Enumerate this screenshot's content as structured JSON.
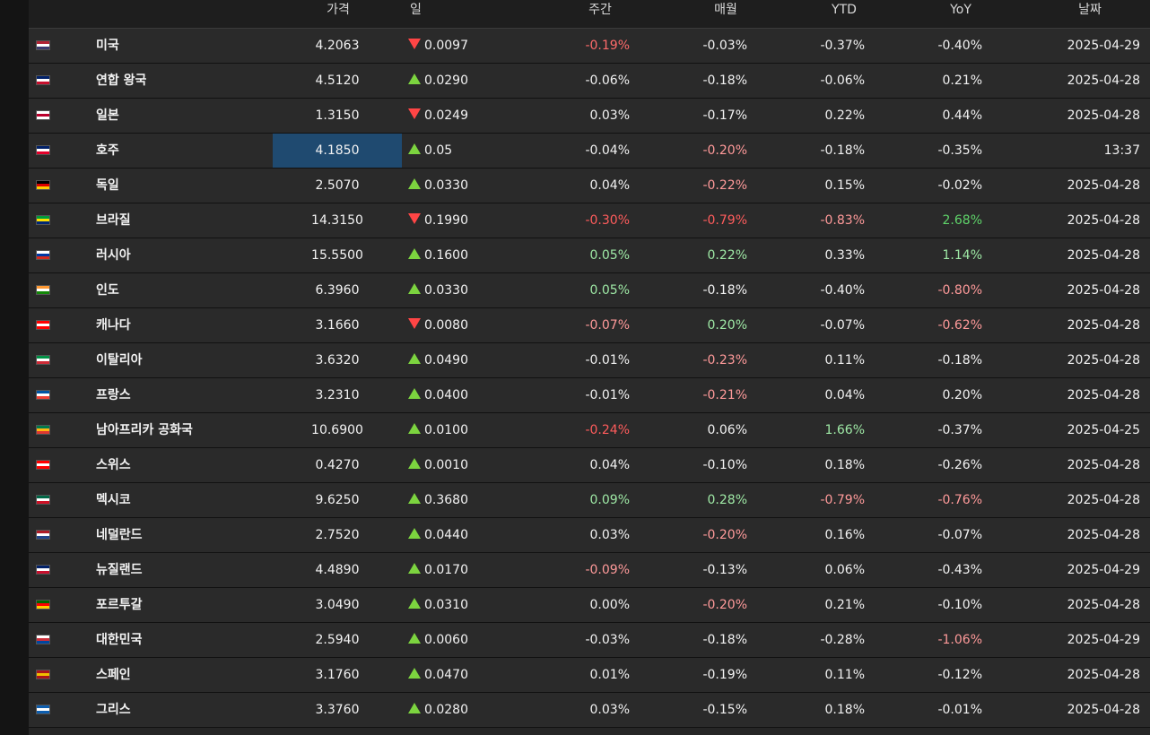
{
  "columns": {
    "price": "가격",
    "day": "일",
    "week": "주간",
    "month": "매월",
    "ytd": "YTD",
    "yoy": "YoY",
    "date": "날짜"
  },
  "rows": [
    {
      "name": "미국",
      "flag_colors": [
        "#b22234",
        "#ffffff",
        "#3c3b6e"
      ],
      "price": "4.2063",
      "dir": "down",
      "day": "0.0097",
      "week": "-0.19%",
      "week_color": "#ff6b6b",
      "month": "-0.03%",
      "month_color": "#f2f2f2",
      "ytd": "-0.37%",
      "ytd_color": "#f2f2f2",
      "yoy": "-0.40%",
      "yoy_color": "#f2f2f2",
      "date": "2025-04-29"
    },
    {
      "name": "연합 왕국",
      "flag_colors": [
        "#012169",
        "#ffffff",
        "#c8102e"
      ],
      "price": "4.5120",
      "dir": "up",
      "day": "0.0290",
      "week": "-0.06%",
      "week_color": "#f2f2f2",
      "month": "-0.18%",
      "month_color": "#f2f2f2",
      "ytd": "-0.06%",
      "ytd_color": "#f2f2f2",
      "yoy": "0.21%",
      "yoy_color": "#f2f2f2",
      "date": "2025-04-28"
    },
    {
      "name": "일본",
      "flag_colors": [
        "#ffffff",
        "#bc002d",
        "#ffffff"
      ],
      "price": "1.3150",
      "dir": "down",
      "day": "0.0249",
      "week": "0.03%",
      "week_color": "#f2f2f2",
      "month": "-0.17%",
      "month_color": "#f2f2f2",
      "ytd": "0.22%",
      "ytd_color": "#f2f2f2",
      "yoy": "0.44%",
      "yoy_color": "#f2f2f2",
      "date": "2025-04-28"
    },
    {
      "name": "호주",
      "flag_colors": [
        "#012169",
        "#ffffff",
        "#e4002b"
      ],
      "price": "4.1850",
      "dir": "up",
      "day": "0.05",
      "week": "-0.04%",
      "week_color": "#f2f2f2",
      "month": "-0.20%",
      "month_color": "#ff9a9a",
      "ytd": "-0.18%",
      "ytd_color": "#f2f2f2",
      "yoy": "-0.35%",
      "yoy_color": "#f2f2f2",
      "date": "13:37",
      "highlight": true
    },
    {
      "name": "독일",
      "flag_colors": [
        "#000000",
        "#dd0000",
        "#ffce00"
      ],
      "price": "2.5070",
      "dir": "up",
      "day": "0.0330",
      "week": "0.04%",
      "week_color": "#f2f2f2",
      "month": "-0.22%",
      "month_color": "#ff9a9a",
      "ytd": "0.15%",
      "ytd_color": "#f2f2f2",
      "yoy": "-0.02%",
      "yoy_color": "#f2f2f2",
      "date": "2025-04-28"
    },
    {
      "name": "브라질",
      "flag_colors": [
        "#009c3b",
        "#ffdf00",
        "#002776"
      ],
      "price": "14.3150",
      "dir": "down",
      "day": "0.1990",
      "week": "-0.30%",
      "week_color": "#ff5c5c",
      "month": "-0.79%",
      "month_color": "#ff5c5c",
      "ytd": "-0.83%",
      "ytd_color": "#ff9a9a",
      "yoy": "2.68%",
      "yoy_color": "#5fd46a",
      "date": "2025-04-28"
    },
    {
      "name": "러시아",
      "flag_colors": [
        "#ffffff",
        "#0039a6",
        "#d52b1e"
      ],
      "price": "15.5500",
      "dir": "up",
      "day": "0.1600",
      "week": "0.05%",
      "week_color": "#9ee8a5",
      "month": "0.22%",
      "month_color": "#9ee8a5",
      "ytd": "0.33%",
      "ytd_color": "#f2f2f2",
      "yoy": "1.14%",
      "yoy_color": "#9ee8a5",
      "date": "2025-04-28"
    },
    {
      "name": "인도",
      "flag_colors": [
        "#ff9933",
        "#ffffff",
        "#138808"
      ],
      "price": "6.3960",
      "dir": "up",
      "day": "0.0330",
      "week": "0.05%",
      "week_color": "#9ee8a5",
      "month": "-0.18%",
      "month_color": "#f2f2f2",
      "ytd": "-0.40%",
      "ytd_color": "#f2f2f2",
      "yoy": "-0.80%",
      "yoy_color": "#ff9a9a",
      "date": "2025-04-28"
    },
    {
      "name": "캐나다",
      "flag_colors": [
        "#ff0000",
        "#ffffff",
        "#ff0000"
      ],
      "price": "3.1660",
      "dir": "down",
      "day": "0.0080",
      "week": "-0.07%",
      "week_color": "#ff9a9a",
      "month": "0.20%",
      "month_color": "#9ee8a5",
      "ytd": "-0.07%",
      "ytd_color": "#f2f2f2",
      "yoy": "-0.62%",
      "yoy_color": "#ff9a9a",
      "date": "2025-04-28"
    },
    {
      "name": "이탈리아",
      "flag_colors": [
        "#009246",
        "#ffffff",
        "#ce2b37"
      ],
      "price": "3.6320",
      "dir": "up",
      "day": "0.0490",
      "week": "-0.01%",
      "week_color": "#f2f2f2",
      "month": "-0.23%",
      "month_color": "#ff9a9a",
      "ytd": "0.11%",
      "ytd_color": "#f2f2f2",
      "yoy": "-0.18%",
      "yoy_color": "#f2f2f2",
      "date": "2025-04-28"
    },
    {
      "name": "프랑스",
      "flag_colors": [
        "#0055a4",
        "#ffffff",
        "#ef4135"
      ],
      "price": "3.2310",
      "dir": "up",
      "day": "0.0400",
      "week": "-0.01%",
      "week_color": "#f2f2f2",
      "month": "-0.21%",
      "month_color": "#ff9a9a",
      "ytd": "0.04%",
      "ytd_color": "#f2f2f2",
      "yoy": "0.20%",
      "yoy_color": "#f2f2f2",
      "date": "2025-04-28"
    },
    {
      "name": "남아프리카 공화국",
      "flag_colors": [
        "#007a4d",
        "#ffb612",
        "#de3831"
      ],
      "price": "10.6900",
      "dir": "up",
      "day": "0.0100",
      "week": "-0.24%",
      "week_color": "#ff5c5c",
      "month": "0.06%",
      "month_color": "#f2f2f2",
      "ytd": "1.66%",
      "ytd_color": "#9ee8a5",
      "yoy": "-0.37%",
      "yoy_color": "#f2f2f2",
      "date": "2025-04-25"
    },
    {
      "name": "스위스",
      "flag_colors": [
        "#ff0000",
        "#ffffff",
        "#ff0000"
      ],
      "price": "0.4270",
      "dir": "up",
      "day": "0.0010",
      "week": "0.04%",
      "week_color": "#f2f2f2",
      "month": "-0.10%",
      "month_color": "#f2f2f2",
      "ytd": "0.18%",
      "ytd_color": "#f2f2f2",
      "yoy": "-0.26%",
      "yoy_color": "#f2f2f2",
      "date": "2025-04-28"
    },
    {
      "name": "멕시코",
      "flag_colors": [
        "#006847",
        "#ffffff",
        "#ce1126"
      ],
      "price": "9.6250",
      "dir": "up",
      "day": "0.3680",
      "week": "0.09%",
      "week_color": "#9ee8a5",
      "month": "0.28%",
      "month_color": "#9ee8a5",
      "ytd": "-0.79%",
      "ytd_color": "#ff9a9a",
      "yoy": "-0.76%",
      "yoy_color": "#ff9a9a",
      "date": "2025-04-28"
    },
    {
      "name": "네덜란드",
      "flag_colors": [
        "#ae1c28",
        "#ffffff",
        "#21468b"
      ],
      "price": "2.7520",
      "dir": "up",
      "day": "0.0440",
      "week": "0.03%",
      "week_color": "#f2f2f2",
      "month": "-0.20%",
      "month_color": "#ff9a9a",
      "ytd": "0.16%",
      "ytd_color": "#f2f2f2",
      "yoy": "-0.07%",
      "yoy_color": "#f2f2f2",
      "date": "2025-04-28"
    },
    {
      "name": "뉴질랜드",
      "flag_colors": [
        "#012169",
        "#ffffff",
        "#c8102e"
      ],
      "price": "4.4890",
      "dir": "up",
      "day": "0.0170",
      "week": "-0.09%",
      "week_color": "#ff9a9a",
      "month": "-0.13%",
      "month_color": "#f2f2f2",
      "ytd": "0.06%",
      "ytd_color": "#f2f2f2",
      "yoy": "-0.43%",
      "yoy_color": "#f2f2f2",
      "date": "2025-04-29"
    },
    {
      "name": "포르투갈",
      "flag_colors": [
        "#006600",
        "#ff0000",
        "#ffcc00"
      ],
      "price": "3.0490",
      "dir": "up",
      "day": "0.0310",
      "week": "0.00%",
      "week_color": "#f2f2f2",
      "month": "-0.20%",
      "month_color": "#ff9a9a",
      "ytd": "0.21%",
      "ytd_color": "#f2f2f2",
      "yoy": "-0.10%",
      "yoy_color": "#f2f2f2",
      "date": "2025-04-28"
    },
    {
      "name": "대한민국",
      "flag_colors": [
        "#ffffff",
        "#cd2e3a",
        "#0047a0"
      ],
      "price": "2.5940",
      "dir": "up",
      "day": "0.0060",
      "week": "-0.03%",
      "week_color": "#f2f2f2",
      "month": "-0.18%",
      "month_color": "#f2f2f2",
      "ytd": "-0.28%",
      "ytd_color": "#f2f2f2",
      "yoy": "-1.06%",
      "yoy_color": "#ff9a9a",
      "date": "2025-04-29"
    },
    {
      "name": "스페인",
      "flag_colors": [
        "#aa151b",
        "#f1bf00",
        "#aa151b"
      ],
      "price": "3.1760",
      "dir": "up",
      "day": "0.0470",
      "week": "0.01%",
      "week_color": "#f2f2f2",
      "month": "-0.19%",
      "month_color": "#f2f2f2",
      "ytd": "0.11%",
      "ytd_color": "#f2f2f2",
      "yoy": "-0.12%",
      "yoy_color": "#f2f2f2",
      "date": "2025-04-28"
    },
    {
      "name": "그리스",
      "flag_colors": [
        "#0d5eaf",
        "#ffffff",
        "#0d5eaf"
      ],
      "price": "3.3760",
      "dir": "up",
      "day": "0.0280",
      "week": "0.03%",
      "week_color": "#f2f2f2",
      "month": "-0.15%",
      "month_color": "#f2f2f2",
      "ytd": "0.18%",
      "ytd_color": "#f2f2f2",
      "yoy": "-0.01%",
      "yoy_color": "#f2f2f2",
      "date": "2025-04-28"
    }
  ]
}
